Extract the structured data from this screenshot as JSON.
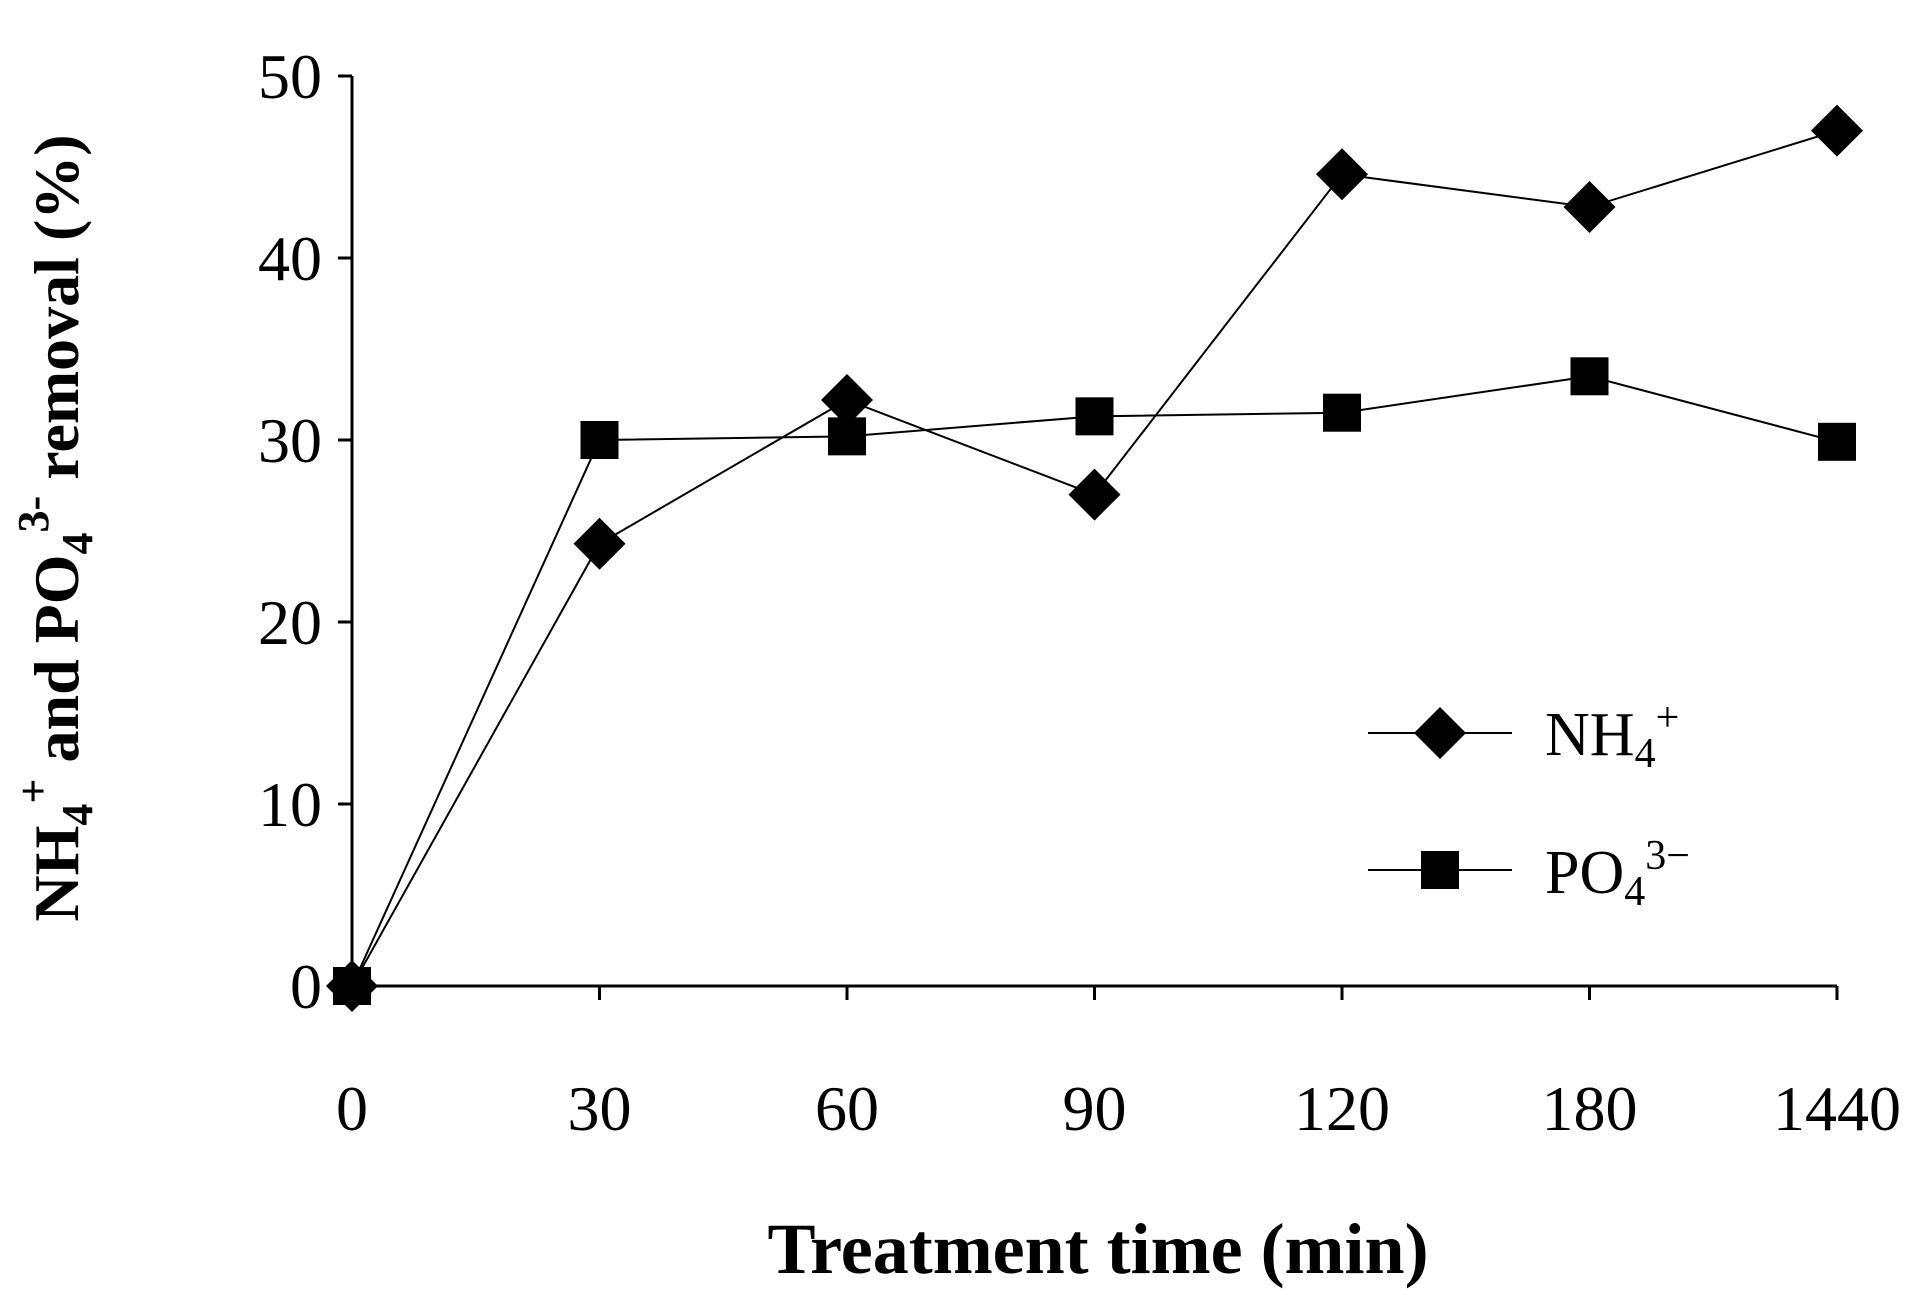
{
  "chart_data": {
    "type": "line",
    "title": "",
    "categories": [
      "0",
      "30",
      "60",
      "90",
      "120",
      "180",
      "1440"
    ],
    "xlabel": "Treatment time (min)",
    "ylabel": {
      "main": "NH",
      "sub1": "4",
      "sup1": "+",
      "mid": " and PO",
      "sub2": "4",
      "sup2": "3-",
      "end": " removal (%)"
    },
    "ylim": [
      0,
      50
    ],
    "yticks": [
      0,
      10,
      20,
      30,
      40,
      50
    ],
    "grid": false,
    "legend_position": "right",
    "series": [
      {
        "name": "NH4+",
        "label": {
          "base": "NH",
          "sub": "4",
          "sup": "+"
        },
        "marker": "diamond",
        "color": "#000000",
        "values": [
          0,
          24.3,
          32.2,
          27.0,
          44.6,
          42.8,
          47.0
        ]
      },
      {
        "name": "PO43-",
        "label": {
          "base": "PO",
          "sub": "4",
          "sup": "3−"
        },
        "marker": "square",
        "color": "#000000",
        "values": [
          0,
          30.0,
          30.2,
          31.3,
          31.5,
          33.5,
          29.9
        ]
      }
    ]
  }
}
